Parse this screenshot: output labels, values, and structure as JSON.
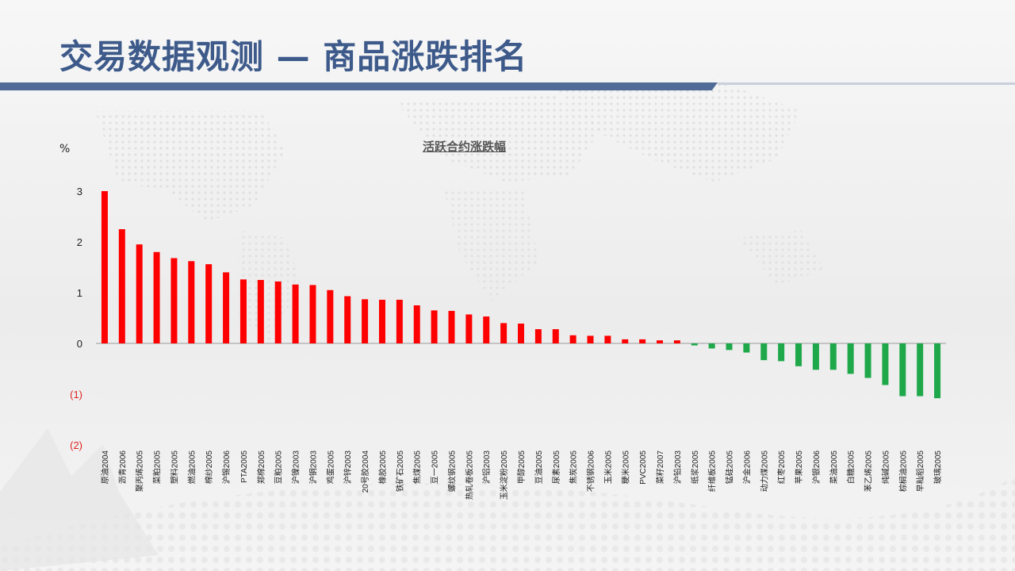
{
  "header": {
    "title": "交易数据观测 — 商品涨跌排名"
  },
  "colors": {
    "up": "#ff0000",
    "down": "#1ea84a",
    "negative_tick": "#e02020",
    "title": "#3d5a8a"
  },
  "chart_data": {
    "type": "bar",
    "title": "活跃合约涨跌幅",
    "ylabel": "%",
    "ylim": [
      -2,
      3
    ],
    "yticks": [
      {
        "value": 3,
        "label": "3"
      },
      {
        "value": 2,
        "label": "2"
      },
      {
        "value": 1,
        "label": "1"
      },
      {
        "value": 0,
        "label": "0"
      },
      {
        "value": -1,
        "label": "(1)"
      },
      {
        "value": -2,
        "label": "(2)"
      }
    ],
    "grid": false,
    "categories": [
      "原油2004",
      "沥青2006",
      "聚丙烯2005",
      "菜粕2005",
      "塑料2005",
      "燃油2005",
      "棉纱2005",
      "沪锡2006",
      "PTA2005",
      "郑棉2005",
      "豆粕2005",
      "沪镍2003",
      "沪铜2003",
      "鸡蛋2005",
      "沪锌2003",
      "20号胶2004",
      "橡胶2005",
      "铁矿石2005",
      "焦煤2005",
      "豆一2005",
      "螺纹钢2005",
      "热轧卷板2005",
      "沪铝2003",
      "玉米淀粉2005",
      "甲醇2005",
      "豆油2005",
      "尿素2005",
      "焦炭2005",
      "不锈钢2006",
      "玉米2005",
      "粳米2005",
      "PVC2005",
      "菜籽2007",
      "沪铅2003",
      "纸浆2005",
      "纤维板2005",
      "锰硅2005",
      "沪金2006",
      "动力煤2005",
      "红枣2005",
      "苹果2005",
      "沪银2006",
      "菜油2005",
      "白糖2005",
      "苯乙烯2005",
      "纯碱2005",
      "棕榈油2005",
      "早籼稻2005",
      "玻璃2005"
    ],
    "values": [
      3.0,
      2.25,
      1.95,
      1.8,
      1.68,
      1.62,
      1.56,
      1.4,
      1.26,
      1.25,
      1.22,
      1.16,
      1.15,
      1.05,
      0.93,
      0.87,
      0.86,
      0.86,
      0.75,
      0.65,
      0.64,
      0.57,
      0.53,
      0.4,
      0.39,
      0.28,
      0.28,
      0.16,
      0.15,
      0.15,
      0.08,
      0.08,
      0.06,
      0.06,
      -0.04,
      -0.1,
      -0.13,
      -0.18,
      -0.33,
      -0.35,
      -0.45,
      -0.52,
      -0.52,
      -0.6,
      -0.68,
      -0.82,
      -1.04,
      -1.04,
      -1.08
    ]
  }
}
